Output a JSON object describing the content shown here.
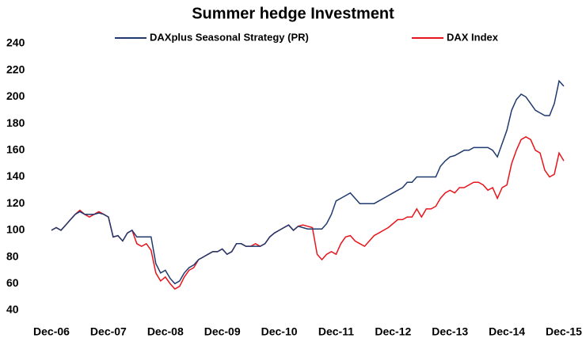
{
  "chart_data": {
    "type": "line",
    "title": "Summer hedge Investment",
    "categories": [
      "Dec-06",
      null,
      null,
      null,
      null,
      null,
      null,
      null,
      null,
      null,
      null,
      null,
      "Dec-07",
      null,
      null,
      null,
      null,
      null,
      null,
      null,
      null,
      null,
      null,
      null,
      "Dec-08",
      null,
      null,
      null,
      null,
      null,
      null,
      null,
      null,
      null,
      null,
      null,
      "Dec-09",
      null,
      null,
      null,
      null,
      null,
      null,
      null,
      null,
      null,
      null,
      null,
      "Dec-10",
      null,
      null,
      null,
      null,
      null,
      null,
      null,
      null,
      null,
      null,
      null,
      "Dec-11",
      null,
      null,
      null,
      null,
      null,
      null,
      null,
      null,
      null,
      null,
      null,
      "Dec-12",
      null,
      null,
      null,
      null,
      null,
      null,
      null,
      null,
      null,
      null,
      null,
      "Dec-13",
      null,
      null,
      null,
      null,
      null,
      null,
      null,
      null,
      null,
      null,
      null,
      "Dec-14",
      null,
      null,
      null,
      null,
      null,
      null,
      null,
      null,
      null,
      null,
      null,
      "Dec-15"
    ],
    "series": [
      {
        "name": "DAXplus Seasonal Strategy (PR)",
        "color": "#1f3a6e",
        "values": [
          100,
          102,
          100,
          104,
          108,
          112,
          114,
          112,
          112,
          112,
          113,
          112,
          110,
          95,
          96,
          92,
          98,
          100,
          95,
          95,
          95,
          95,
          75,
          68,
          70,
          64,
          60,
          62,
          68,
          72,
          74,
          78,
          80,
          82,
          84,
          84,
          86,
          82,
          84,
          90,
          90,
          88,
          88,
          88,
          88,
          90,
          95,
          98,
          100,
          102,
          104,
          100,
          103,
          102,
          101,
          101,
          101,
          101,
          105,
          112,
          122,
          124,
          126,
          128,
          124,
          120,
          120,
          120,
          120,
          122,
          124,
          126,
          128,
          130,
          132,
          136,
          136,
          140,
          140,
          140,
          140,
          140,
          148,
          152,
          155,
          156,
          158,
          160,
          160,
          162,
          162,
          162,
          162,
          160,
          155,
          165,
          175,
          190,
          198,
          202,
          200,
          195,
          190,
          188,
          186,
          186,
          195,
          212,
          208
        ]
      },
      {
        "name": "DAX Index",
        "color": "#e8141c",
        "values": [
          100,
          102,
          100,
          104,
          108,
          112,
          115,
          112,
          110,
          112,
          114,
          112,
          110,
          95,
          96,
          92,
          98,
          100,
          90,
          88,
          90,
          85,
          68,
          62,
          65,
          60,
          56,
          58,
          65,
          70,
          72,
          78,
          80,
          82,
          84,
          84,
          86,
          82,
          84,
          90,
          90,
          88,
          88,
          90,
          88,
          90,
          95,
          98,
          100,
          102,
          104,
          100,
          103,
          104,
          103,
          102,
          82,
          78,
          82,
          84,
          82,
          90,
          95,
          96,
          92,
          90,
          88,
          92,
          96,
          98,
          100,
          102,
          105,
          108,
          108,
          110,
          110,
          116,
          110,
          116,
          116,
          118,
          124,
          128,
          130,
          128,
          132,
          132,
          134,
          136,
          136,
          134,
          130,
          132,
          124,
          132,
          134,
          150,
          160,
          168,
          170,
          168,
          160,
          158,
          145,
          140,
          142,
          158,
          152
        ]
      }
    ],
    "ylim": [
      40,
      240
    ],
    "yticks": [
      40,
      60,
      80,
      100,
      120,
      140,
      160,
      180,
      200,
      220,
      240
    ]
  }
}
